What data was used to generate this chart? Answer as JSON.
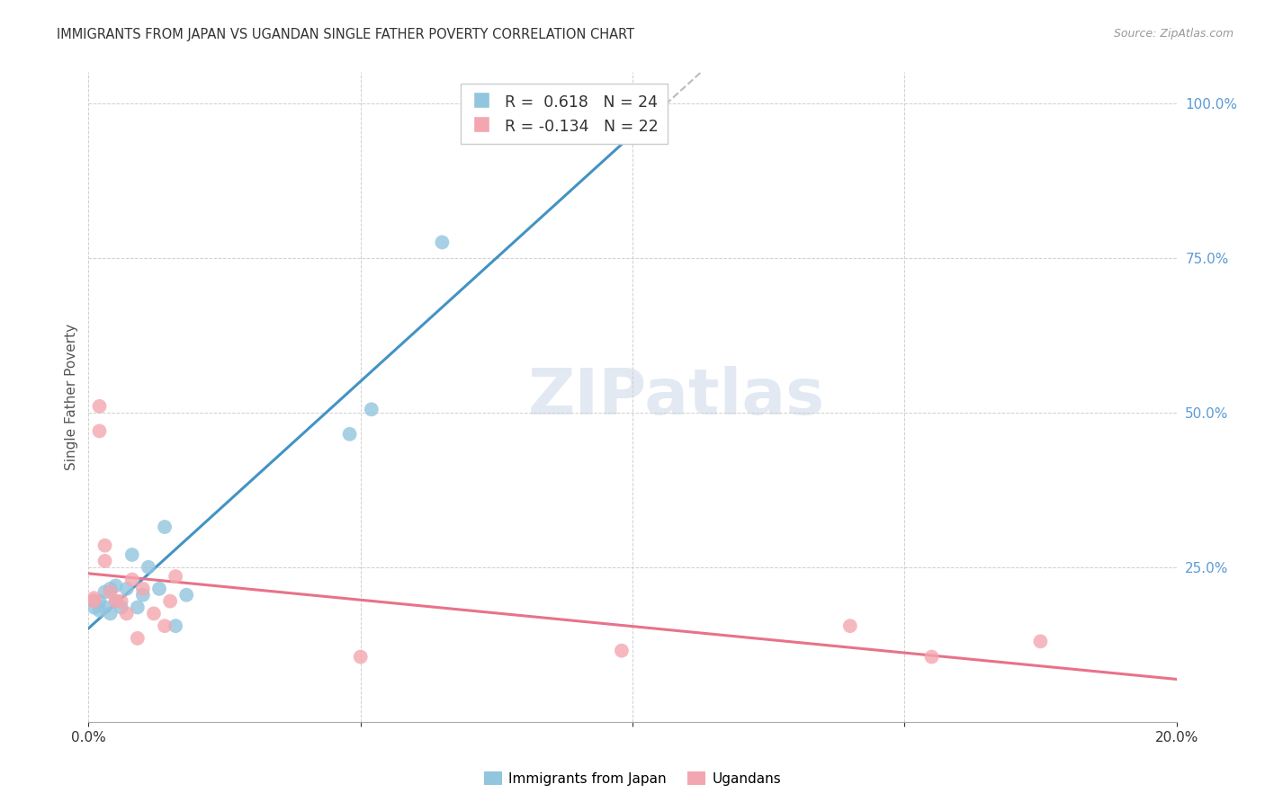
{
  "title": "IMMIGRANTS FROM JAPAN VS UGANDAN SINGLE FATHER POVERTY CORRELATION CHART",
  "source": "Source: ZipAtlas.com",
  "ylabel": "Single Father Poverty",
  "legend_labels": [
    "Immigrants from Japan",
    "Ugandans"
  ],
  "r_japan": 0.618,
  "n_japan": 24,
  "r_uganda": -0.134,
  "n_uganda": 22,
  "xlim": [
    0.0,
    0.2
  ],
  "ylim": [
    0.0,
    1.05
  ],
  "blue_color": "#92c5de",
  "pink_color": "#f4a6b0",
  "blue_line_color": "#4393c3",
  "pink_line_color": "#e8728a",
  "dashed_line_color": "#bbbbbb",
  "right_tick_color": "#5b9bd5",
  "japan_x": [
    0.001,
    0.001,
    0.002,
    0.002,
    0.003,
    0.003,
    0.004,
    0.004,
    0.005,
    0.005,
    0.006,
    0.007,
    0.008,
    0.009,
    0.01,
    0.011,
    0.013,
    0.014,
    0.016,
    0.018,
    0.048,
    0.052,
    0.065,
    0.098
  ],
  "japan_y": [
    0.195,
    0.185,
    0.195,
    0.18,
    0.21,
    0.185,
    0.215,
    0.175,
    0.22,
    0.195,
    0.185,
    0.215,
    0.27,
    0.185,
    0.205,
    0.25,
    0.215,
    0.315,
    0.155,
    0.205,
    0.465,
    0.505,
    0.775,
    0.96
  ],
  "uganda_x": [
    0.001,
    0.001,
    0.002,
    0.002,
    0.003,
    0.003,
    0.004,
    0.005,
    0.006,
    0.007,
    0.008,
    0.009,
    0.01,
    0.012,
    0.014,
    0.015,
    0.016,
    0.05,
    0.098,
    0.14,
    0.155,
    0.175
  ],
  "uganda_y": [
    0.2,
    0.195,
    0.47,
    0.51,
    0.285,
    0.26,
    0.21,
    0.195,
    0.195,
    0.175,
    0.23,
    0.135,
    0.215,
    0.175,
    0.155,
    0.195,
    0.235,
    0.105,
    0.115,
    0.155,
    0.105,
    0.13
  ]
}
